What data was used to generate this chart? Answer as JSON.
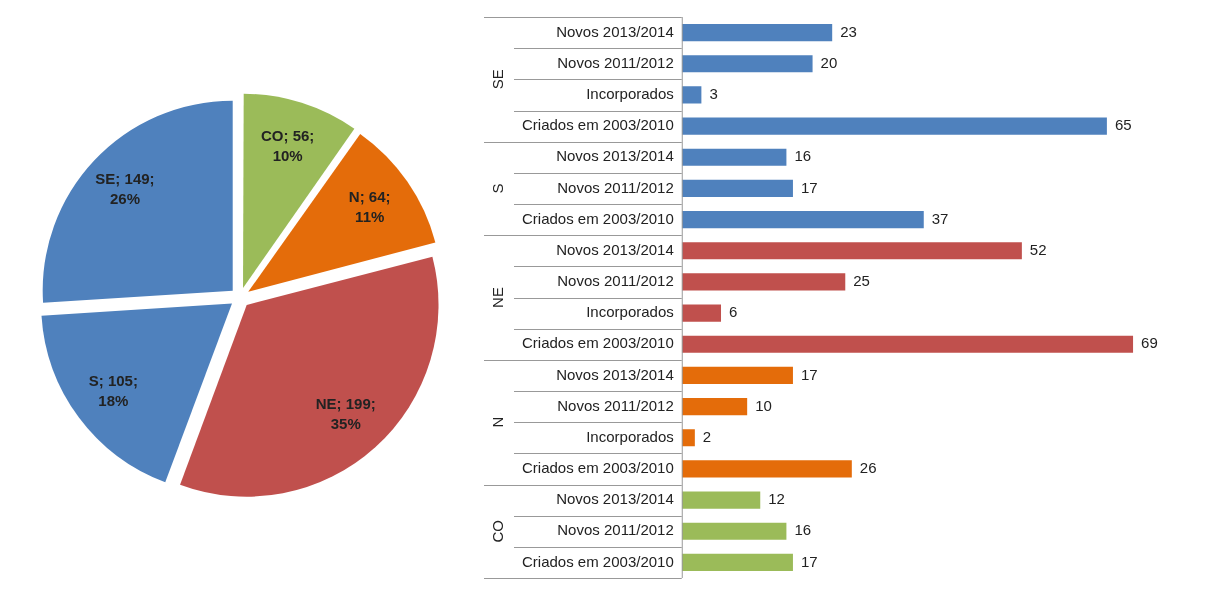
{
  "chart_data": [
    {
      "type": "pie",
      "categories": [
        "CO",
        "N",
        "NE",
        "S",
        "SE"
      ],
      "values": [
        56,
        64,
        199,
        105,
        149
      ],
      "colors": [
        "#9bbb59",
        "#e46c0a",
        "#c0504d",
        "#4f81bd",
        "#4f81bd"
      ],
      "value_labels": [
        "56;\n10%",
        "64;\n11%",
        "199;\n35%",
        "105;\n18%",
        "149;\n26%"
      ],
      "legend": false
    },
    {
      "type": "bar",
      "orientation": "horizontal",
      "data_labels": true,
      "grid": false,
      "legend": false,
      "tick_labels": "y",
      "categories": [
        "Novos 2013/2014",
        "Novos 2011/2012",
        "Incorporados",
        "Criados em 2003/2010",
        "Novos 2013/2014",
        "Novos 2011/2012",
        "Criados em 2003/2010",
        "Novos 2013/2014",
        "Novos 2011/2012",
        "Incorporados",
        "Criados em 2003/2010",
        "Novos 2013/2014",
        "Novos 2011/2012",
        "Incorporados",
        "Criados em 2003/2010",
        "Novos 2013/2014",
        "Novos 2011/2012",
        "Criados em 2003/2010"
      ],
      "series": [
        {
          "name": "SE",
          "color": "#4f81bd",
          "values": [
            23,
            20,
            3,
            65,
            null,
            null,
            null,
            null,
            null,
            null,
            null,
            null,
            null,
            null,
            null,
            null,
            null,
            null
          ]
        },
        {
          "name": "S",
          "color": "#4f81bd",
          "values": [
            null,
            null,
            null,
            null,
            16,
            17,
            37,
            null,
            null,
            null,
            null,
            null,
            null,
            null,
            null,
            null,
            null,
            null
          ]
        },
        {
          "name": "NE",
          "color": "#c0504d",
          "values": [
            null,
            null,
            null,
            null,
            null,
            null,
            null,
            52,
            25,
            6,
            69,
            null,
            null,
            null,
            null,
            null,
            null,
            null
          ]
        },
        {
          "name": "N",
          "color": "#e46c0a",
          "values": [
            null,
            null,
            null,
            null,
            null,
            null,
            null,
            null,
            null,
            null,
            null,
            17,
            10,
            2,
            26,
            null,
            null,
            null
          ]
        },
        {
          "name": "CO",
          "color": "#9bbb59",
          "values": [
            null,
            null,
            null,
            null,
            null,
            null,
            null,
            null,
            null,
            null,
            null,
            null,
            null,
            null,
            null,
            12,
            16,
            17
          ]
        }
      ]
    }
  ]
}
